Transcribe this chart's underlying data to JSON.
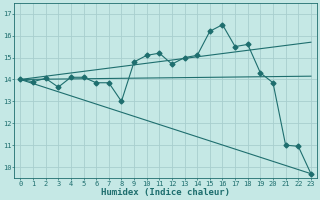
{
  "title": "",
  "xlabel": "Humidex (Indice chaleur)",
  "bg_color": "#c5e8e5",
  "grid_color": "#a8cece",
  "line_color": "#1e6e6e",
  "xlim": [
    -0.5,
    23.5
  ],
  "ylim": [
    9.5,
    17.5
  ],
  "xticks": [
    0,
    1,
    2,
    3,
    4,
    5,
    6,
    7,
    8,
    9,
    10,
    11,
    12,
    13,
    14,
    15,
    16,
    17,
    18,
    19,
    20,
    21,
    22,
    23
  ],
  "yticks": [
    10,
    11,
    12,
    13,
    14,
    15,
    16,
    17
  ],
  "series1_x": [
    0,
    1,
    2,
    3,
    4,
    5,
    6,
    7,
    8,
    9,
    10,
    11,
    12,
    13,
    14,
    15,
    16,
    17,
    18,
    19,
    20,
    21,
    22,
    23
  ],
  "series1_y": [
    14.0,
    13.9,
    14.05,
    13.65,
    14.1,
    14.1,
    13.85,
    13.85,
    13.0,
    14.8,
    15.1,
    15.2,
    14.7,
    15.0,
    15.1,
    16.2,
    16.5,
    15.5,
    15.6,
    14.3,
    13.85,
    11.0,
    10.95,
    9.7
  ],
  "trend1_x": [
    0,
    23
  ],
  "trend1_y": [
    14.0,
    15.7
  ],
  "trend2_x": [
    0,
    23
  ],
  "trend2_y": [
    14.0,
    14.15
  ],
  "trend3_x": [
    0,
    23
  ],
  "trend3_y": [
    14.0,
    9.7
  ],
  "marker_size": 2.5,
  "line_width": 0.8,
  "tick_fontsize": 5.0,
  "xlabel_fontsize": 6.5,
  "xlabel_bold": true
}
